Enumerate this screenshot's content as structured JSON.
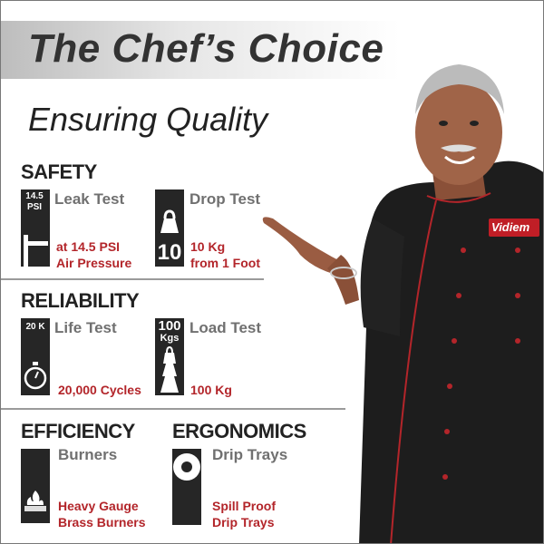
{
  "header": {
    "title": "The Chef’s Choice",
    "subtitle": "Ensuring Quality"
  },
  "brand": {
    "badge": "Vidiem",
    "accent": "#b3252a"
  },
  "sections": {
    "safety": {
      "heading": "SAFETY",
      "items": [
        {
          "icon": "pressure-gauge-icon",
          "icon_text": "14.5 PSI",
          "name": "Leak Test",
          "desc1": "at 14.5 PSI",
          "desc2": "Air Pressure"
        },
        {
          "icon": "weight-icon",
          "icon_text": "10",
          "name": "Drop Test",
          "desc1": "10 Kg",
          "desc2": "from 1 Foot"
        }
      ]
    },
    "reliability": {
      "heading": "RELIABILITY",
      "items": [
        {
          "icon": "stopwatch-icon",
          "icon_text": "20 K",
          "name": "Life Test",
          "desc1": "20,000 Cycles"
        },
        {
          "icon": "stacked-weight-icon",
          "icon_text": "100",
          "icon_text2": "Kgs",
          "name": "Load Test",
          "desc1": "100 Kg"
        }
      ]
    },
    "efficiency": {
      "heading": "EFFICIENCY",
      "items": [
        {
          "icon": "flame-burner-icon",
          "name": "Burners",
          "desc1": "Heavy Gauge",
          "desc2": "Brass Burners"
        }
      ]
    },
    "ergonomics": {
      "heading": "ERGONOMICS",
      "items": [
        {
          "icon": "drip-tray-icon",
          "name": "Drip Trays",
          "desc1": "Spill Proof",
          "desc2": "Drip Trays"
        }
      ]
    }
  }
}
